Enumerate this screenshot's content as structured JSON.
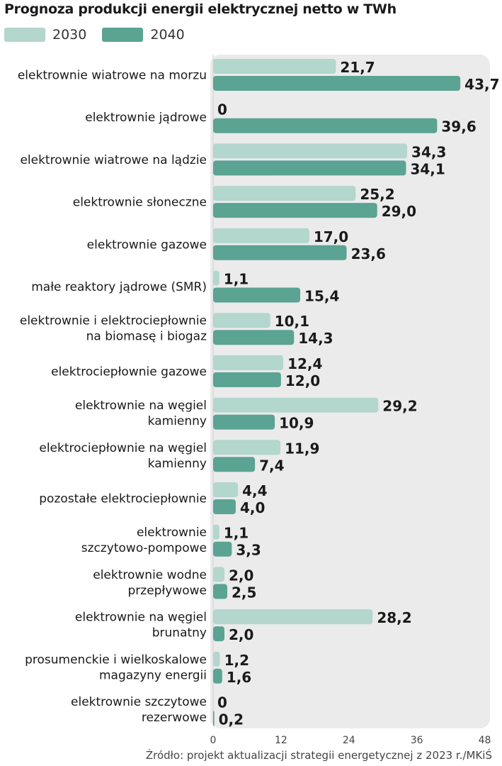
{
  "title": "Prognoza produkcji energii elektrycznej netto w TWh",
  "source": "Źródło: projekt aktualizacji strategii energetycznej z 2023 r./MKiŚ",
  "colors": {
    "s2030": "#b3d6cd",
    "s2040": "#5ba393",
    "panel": "#ebebeb"
  },
  "chart_data": {
    "type": "bar",
    "orientation": "horizontal",
    "title": "Prognoza produkcji energii elektrycznej netto w TWh",
    "categories": [
      [
        "elektrownie wiatrowe na morzu"
      ],
      [
        "elektrownie jądrowe"
      ],
      [
        "elektrownie wiatrowe na lądzie"
      ],
      [
        "elektrownie słoneczne"
      ],
      [
        "elektrownie gazowe"
      ],
      [
        "małe reaktory jądrowe (SMR)"
      ],
      [
        "elektrownie i elektrociepłownie",
        "na biomasę i biogaz"
      ],
      [
        "elektrociepłownie gazowe"
      ],
      [
        "elektrownie na węgiel",
        "kamienny"
      ],
      [
        "elektrociepłownie na węgiel",
        "kamienny"
      ],
      [
        "pozostałe elektrociepłownie"
      ],
      [
        "elektrownie",
        "szczytowo-pompowe"
      ],
      [
        "elektrownie wodne",
        "przepływowe"
      ],
      [
        "elektrownie na węgiel",
        "brunatny"
      ],
      [
        "prosumenckie i wielkoskalowe",
        "magazyny energii"
      ],
      [
        "elektrownie szczytowe",
        "rezerwowe"
      ]
    ],
    "series": [
      {
        "name": "2030",
        "values": [
          21.7,
          0,
          34.3,
          25.2,
          17.0,
          1.1,
          10.1,
          12.4,
          29.2,
          11.9,
          4.4,
          1.1,
          2.0,
          28.2,
          1.2,
          0
        ],
        "labels": [
          "21,7",
          "0",
          "34,3",
          "25,2",
          "17,0",
          "1,1",
          "10,1",
          "12,4",
          "29,2",
          "11,9",
          "4,4",
          "1,1",
          "2,0",
          "28,2",
          "1,2",
          "0"
        ]
      },
      {
        "name": "2040",
        "values": [
          43.7,
          39.6,
          34.1,
          29.0,
          23.6,
          15.4,
          14.3,
          12.0,
          10.9,
          7.4,
          4.0,
          3.3,
          2.5,
          2.0,
          1.6,
          0.2
        ],
        "labels": [
          "43,7",
          "39,6",
          "34,1",
          "29,0",
          "23,6",
          "15,4",
          "14,3",
          "12,0",
          "10,9",
          "7,4",
          "4,0",
          "3,3",
          "2,5",
          "2,0",
          "1,6",
          "0,2"
        ]
      }
    ],
    "xlim": [
      0,
      48
    ],
    "xticks": [
      "0",
      "12",
      "24",
      "36",
      "48"
    ],
    "grid": false,
    "legend": "top-left"
  }
}
